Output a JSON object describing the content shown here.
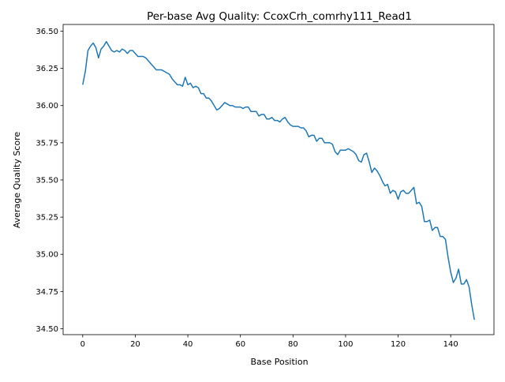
{
  "chart_data": {
    "type": "line",
    "title": "Per-base Avg Quality: CcoxCrh_comrhy111_Read1",
    "xlabel": "Base Position",
    "ylabel": "Average Quality Score",
    "xlim": [
      -7.45,
      156.45
    ],
    "ylim": [
      34.46,
      36.545
    ],
    "xticks": [
      0,
      20,
      40,
      60,
      80,
      100,
      120,
      140
    ],
    "xtick_labels": [
      "0",
      "20",
      "40",
      "60",
      "80",
      "100",
      "120",
      "140"
    ],
    "yticks": [
      34.5,
      34.75,
      35.0,
      35.25,
      35.5,
      35.75,
      36.0,
      36.25,
      36.5
    ],
    "ytick_labels": [
      "34.50",
      "34.75",
      "35.00",
      "35.25",
      "35.50",
      "35.75",
      "36.00",
      "36.25",
      "36.50"
    ],
    "grid": false,
    "legend": "none",
    "series": [
      {
        "color": "#1f77b4",
        "x": [
          0,
          1,
          2,
          3,
          4,
          5,
          6,
          7,
          8,
          9,
          10,
          11,
          12,
          13,
          14,
          15,
          16,
          17,
          18,
          19,
          20,
          21,
          22,
          23,
          24,
          25,
          26,
          27,
          28,
          29,
          30,
          31,
          32,
          33,
          34,
          35,
          36,
          37,
          38,
          39,
          40,
          41,
          42,
          43,
          44,
          45,
          46,
          47,
          48,
          49,
          50,
          51,
          52,
          53,
          54,
          55,
          56,
          57,
          58,
          59,
          60,
          61,
          62,
          63,
          64,
          65,
          66,
          67,
          68,
          69,
          70,
          71,
          72,
          73,
          74,
          75,
          76,
          77,
          78,
          79,
          80,
          81,
          82,
          83,
          84,
          85,
          86,
          87,
          88,
          89,
          90,
          91,
          92,
          93,
          94,
          95,
          96,
          97,
          98,
          99,
          100,
          101,
          102,
          103,
          104,
          105,
          106,
          107,
          108,
          109,
          110,
          111,
          112,
          113,
          114,
          115,
          116,
          117,
          118,
          119,
          120,
          121,
          122,
          123,
          124,
          125,
          126,
          127,
          128,
          129,
          130,
          131,
          132,
          133,
          134,
          135,
          136,
          137,
          138,
          139,
          140,
          141,
          142,
          143,
          144,
          145,
          146,
          147,
          148,
          149
        ],
        "y": [
          36.14,
          36.23,
          36.37,
          36.4,
          36.42,
          36.39,
          36.32,
          36.38,
          36.4,
          36.43,
          36.4,
          36.37,
          36.36,
          36.37,
          36.36,
          36.38,
          36.37,
          36.35,
          36.37,
          36.37,
          36.35,
          36.33,
          36.33,
          36.33,
          36.32,
          36.3,
          36.28,
          36.26,
          36.24,
          36.24,
          36.24,
          36.23,
          36.22,
          36.21,
          36.18,
          36.16,
          36.14,
          36.14,
          36.13,
          36.19,
          36.14,
          36.15,
          36.12,
          36.13,
          36.12,
          36.08,
          36.08,
          36.05,
          36.05,
          36.03,
          36.0,
          35.97,
          35.98,
          36.0,
          36.02,
          36.01,
          36.0,
          36.0,
          35.99,
          35.99,
          35.99,
          35.98,
          35.99,
          35.99,
          35.96,
          35.96,
          35.96,
          35.93,
          35.94,
          35.94,
          35.91,
          35.91,
          35.92,
          35.9,
          35.9,
          35.89,
          35.91,
          35.92,
          35.89,
          35.87,
          35.86,
          35.86,
          35.86,
          35.85,
          35.85,
          35.83,
          35.79,
          35.8,
          35.8,
          35.76,
          35.78,
          35.78,
          35.75,
          35.75,
          35.75,
          35.74,
          35.69,
          35.67,
          35.7,
          35.7,
          35.7,
          35.71,
          35.7,
          35.69,
          35.67,
          35.63,
          35.62,
          35.67,
          35.68,
          35.62,
          35.55,
          35.58,
          35.56,
          35.53,
          35.49,
          35.46,
          35.47,
          35.41,
          35.43,
          35.42,
          35.37,
          35.42,
          35.43,
          35.41,
          35.41,
          35.43,
          35.45,
          35.34,
          35.35,
          35.32,
          35.22,
          35.22,
          35.23,
          35.16,
          35.18,
          35.18,
          35.12,
          35.12,
          35.1,
          34.98,
          34.88,
          34.81,
          34.84,
          34.9,
          34.8,
          34.8,
          34.83,
          34.78,
          34.66,
          34.56
        ]
      }
    ]
  }
}
